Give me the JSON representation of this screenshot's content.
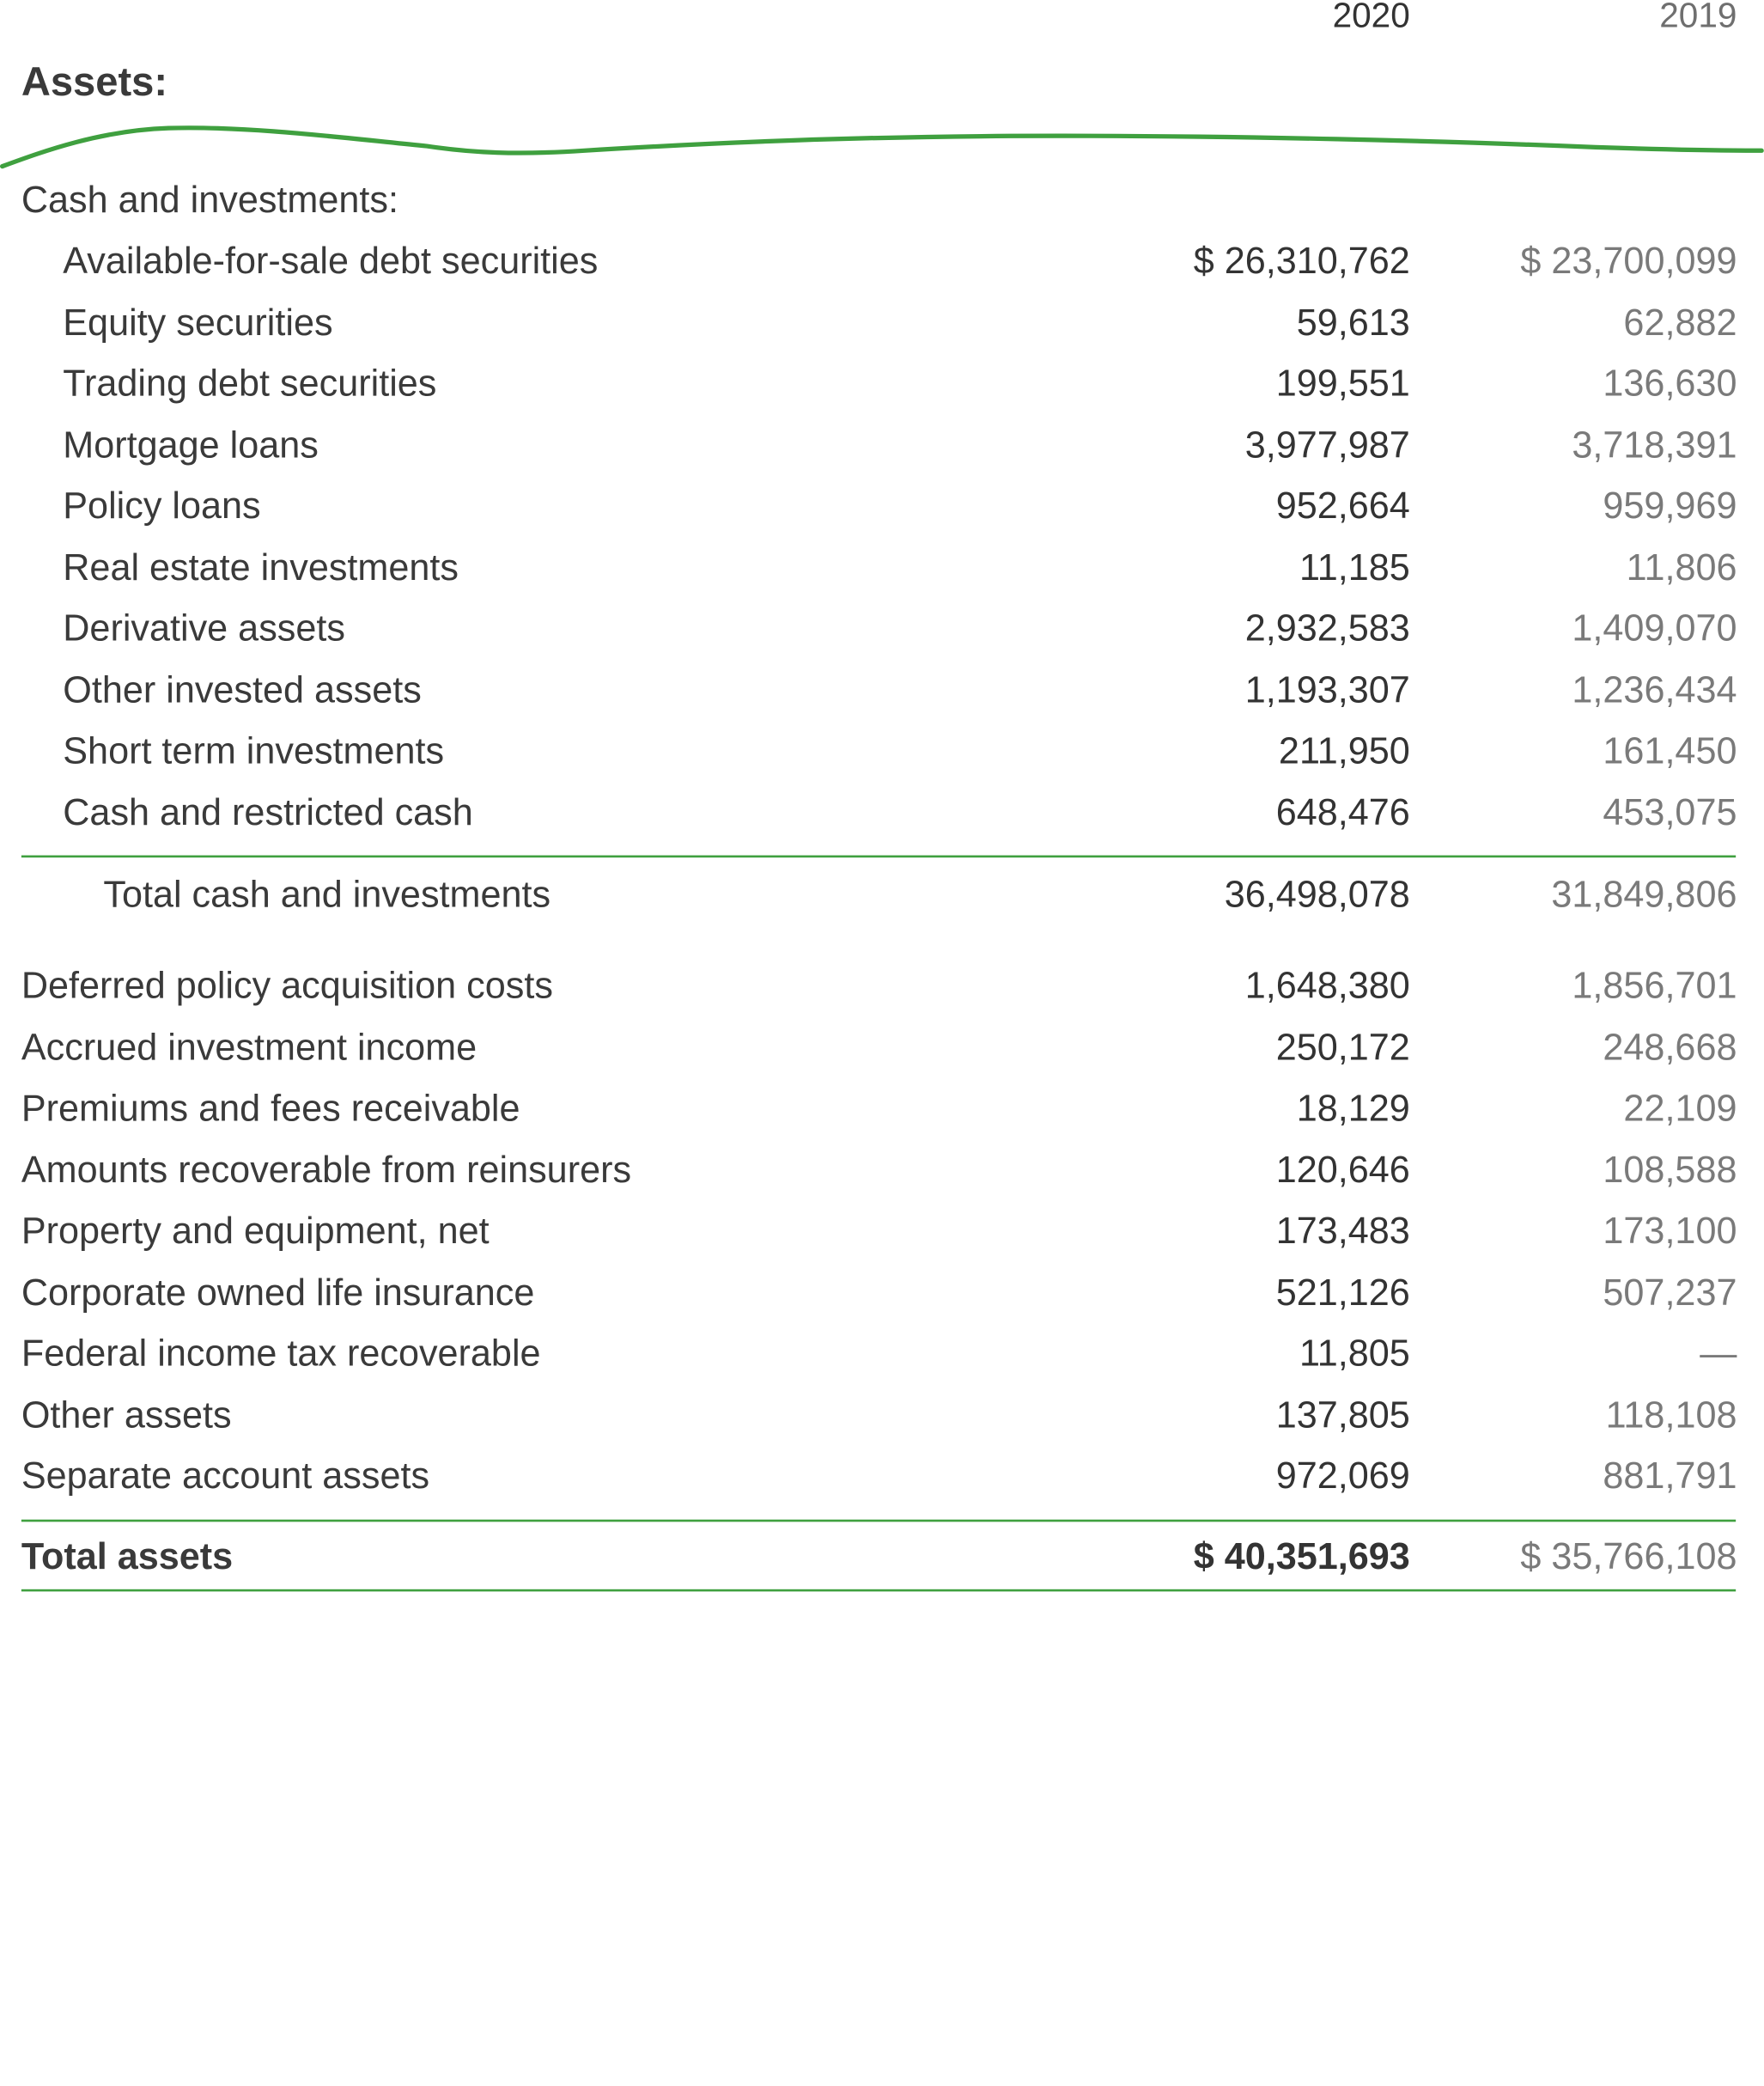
{
  "header": {
    "col_2020": "2020",
    "col_2019": "2019"
  },
  "section_title": "Assets:",
  "colors": {
    "accent_green": "#3fa03f"
  },
  "rows": [
    {
      "label": "Cash and investments:",
      "v2020": "",
      "v2019": ""
    },
    {
      "label": "Available-for-sale debt securities",
      "v2020": "$ 26,310,762",
      "v2019": "$ 23,700,099"
    },
    {
      "label": "Equity securities",
      "v2020": "59,613",
      "v2019": "62,882"
    },
    {
      "label": "Trading debt securities",
      "v2020": "199,551",
      "v2019": "136,630"
    },
    {
      "label": "Mortgage loans",
      "v2020": "3,977,987",
      "v2019": "3,718,391"
    },
    {
      "label": "Policy loans",
      "v2020": "952,664",
      "v2019": "959,969"
    },
    {
      "label": "Real estate investments",
      "v2020": "11,185",
      "v2019": "11,806"
    },
    {
      "label": "Derivative assets",
      "v2020": "2,932,583",
      "v2019": "1,409,070"
    },
    {
      "label": "Other invested assets",
      "v2020": "1,193,307",
      "v2019": "1,236,434"
    },
    {
      "label": "Short term investments",
      "v2020": "211,950",
      "v2019": "161,450"
    },
    {
      "label": "Cash and restricted cash",
      "v2020": "648,476",
      "v2019": "453,075"
    },
    {
      "label": "Total cash and investments",
      "v2020": "36,498,078",
      "v2019": "31,849,806"
    },
    {
      "label": "Deferred policy acquisition costs",
      "v2020": "1,648,380",
      "v2019": "1,856,701"
    },
    {
      "label": "Accrued investment income",
      "v2020": "250,172",
      "v2019": "248,668"
    },
    {
      "label": "Premiums and fees receivable",
      "v2020": "18,129",
      "v2019": "22,109"
    },
    {
      "label": "Amounts recoverable from reinsurers",
      "v2020": "120,646",
      "v2019": "108,588"
    },
    {
      "label": "Property and equipment, net",
      "v2020": "173,483",
      "v2019": "173,100"
    },
    {
      "label": "Corporate owned life insurance",
      "v2020": "521,126",
      "v2019": "507,237"
    },
    {
      "label": "Federal income tax recoverable",
      "v2020": "11,805",
      "v2019": "—"
    },
    {
      "label": "Other assets",
      "v2020": "137,805",
      "v2019": "118,108"
    },
    {
      "label": "Separate account assets",
      "v2020": "972,069",
      "v2019": "881,791"
    },
    {
      "label": "Total assets",
      "v2020": "$ 40,351,693",
      "v2019": "$ 35,766,108"
    }
  ]
}
